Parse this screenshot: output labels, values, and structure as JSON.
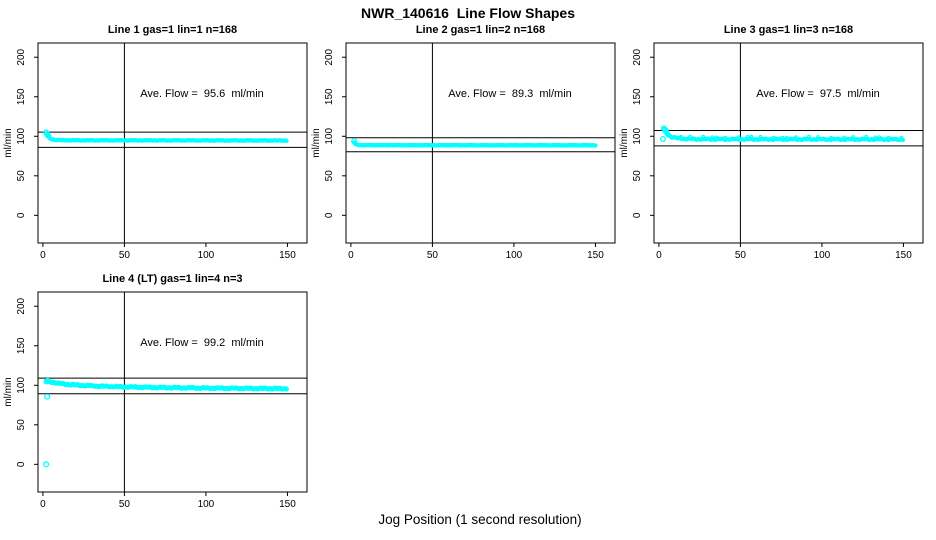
{
  "page_title": "NWR_140616  Line Flow Shapes",
  "outer_xlabel": "Jog Position (1 second resolution)",
  "colors": {
    "points": "#00FFFF",
    "axis": "#000000",
    "background": "#FFFFFF"
  },
  "chart_data": [
    {
      "type": "scatter",
      "title": "Line 1 gas=1 lin=1 n=168",
      "annotation": "Ave. Flow =  95.6  ml/min",
      "ave_flow_ml_min": 95.6,
      "ylabel": "ml/min",
      "x_ticks": [
        0,
        50,
        100,
        150
      ],
      "y_ticks": [
        0,
        50,
        100,
        150,
        200
      ],
      "xlim": [
        -3,
        162
      ],
      "ylim": [
        -35,
        218
      ],
      "vline_x": 50,
      "hlines": [
        105.2,
        86.0
      ],
      "band_keypoints": [
        [
          3,
          100.2
        ],
        [
          4,
          97.8
        ],
        [
          5,
          96.6
        ],
        [
          7,
          95.6
        ],
        [
          10,
          95.1
        ],
        [
          20,
          94.9
        ],
        [
          80,
          94.8
        ],
        [
          150,
          94.6
        ]
      ],
      "spike_points": [
        [
          2,
          104.8
        ],
        [
          2.6,
          102.8
        ],
        [
          3.2,
          100.8
        ]
      ],
      "outlier_points": [],
      "jitter": 0.35,
      "point_radius": 2.2,
      "speckle": false
    },
    {
      "type": "scatter",
      "title": "Line 2 gas=1 lin=2 n=168",
      "annotation": "Ave. Flow =  89.3  ml/min",
      "ave_flow_ml_min": 89.3,
      "ylabel": "ml/min",
      "x_ticks": [
        0,
        50,
        100,
        150
      ],
      "y_ticks": [
        0,
        50,
        100,
        150,
        200
      ],
      "xlim": [
        -3,
        162
      ],
      "ylim": [
        -35,
        218
      ],
      "vline_x": 50,
      "hlines": [
        98.2,
        80.4
      ],
      "band_keypoints": [
        [
          2,
          92
        ],
        [
          3,
          89.6
        ],
        [
          5,
          88.9
        ],
        [
          10,
          88.7
        ],
        [
          150,
          88.6
        ]
      ],
      "spike_points": [
        [
          2,
          93.8
        ]
      ],
      "outlier_points": [],
      "jitter": 0.3,
      "point_radius": 2.2,
      "speckle": false
    },
    {
      "type": "scatter",
      "title": "Line 3 gas=1 lin=3 n=168",
      "annotation": "Ave. Flow =  97.5  ml/min",
      "ave_flow_ml_min": 97.5,
      "ylabel": "ml/min",
      "x_ticks": [
        0,
        50,
        100,
        150
      ],
      "y_ticks": [
        0,
        50,
        100,
        150,
        200
      ],
      "xlim": [
        -3,
        162
      ],
      "ylim": [
        -35,
        218
      ],
      "vline_x": 50,
      "hlines": [
        107.3,
        87.8
      ],
      "band_keypoints": [
        [
          4,
          105.5
        ],
        [
          5,
          103
        ],
        [
          6,
          101.2
        ],
        [
          8,
          99
        ],
        [
          11,
          97.6
        ],
        [
          16,
          96.8
        ],
        [
          25,
          96.3
        ],
        [
          150,
          96.1
        ]
      ],
      "spike_points": [
        [
          3,
          110
        ],
        [
          3.6,
          108.6
        ],
        [
          4.2,
          107.2
        ],
        [
          2.5,
          96.5
        ]
      ],
      "outlier_points": [],
      "jitter": 0.9,
      "point_radius": 2.2,
      "speckle": true
    },
    {
      "type": "scatter",
      "title": "Line 4 (LT) gas=1 lin=4 n=3",
      "annotation": "Ave. Flow =  99.2  ml/min",
      "ave_flow_ml_min": 99.2,
      "ylabel": "ml/min",
      "x_ticks": [
        0,
        50,
        100,
        150
      ],
      "y_ticks": [
        0,
        50,
        100,
        150,
        200
      ],
      "xlim": [
        -3,
        162
      ],
      "ylim": [
        -35,
        218
      ],
      "vline_x": 50,
      "hlines": [
        109.1,
        89.3
      ],
      "band_keypoints": [
        [
          3,
          105
        ],
        [
          6,
          103.8
        ],
        [
          10,
          102.3
        ],
        [
          16,
          100.9
        ],
        [
          24,
          99.8
        ],
        [
          34,
          98.8
        ],
        [
          50,
          97.9
        ],
        [
          70,
          97.1
        ],
        [
          100,
          96.4
        ],
        [
          130,
          95.9
        ],
        [
          150,
          95.7
        ]
      ],
      "spike_points": [
        [
          2.2,
          104.8
        ],
        [
          3,
          105.6
        ]
      ],
      "outlier_points": [
        [
          2,
          0
        ],
        [
          2.6,
          85.5
        ]
      ],
      "jitter": 0.8,
      "point_radius": 2.5,
      "speckle": false
    }
  ]
}
